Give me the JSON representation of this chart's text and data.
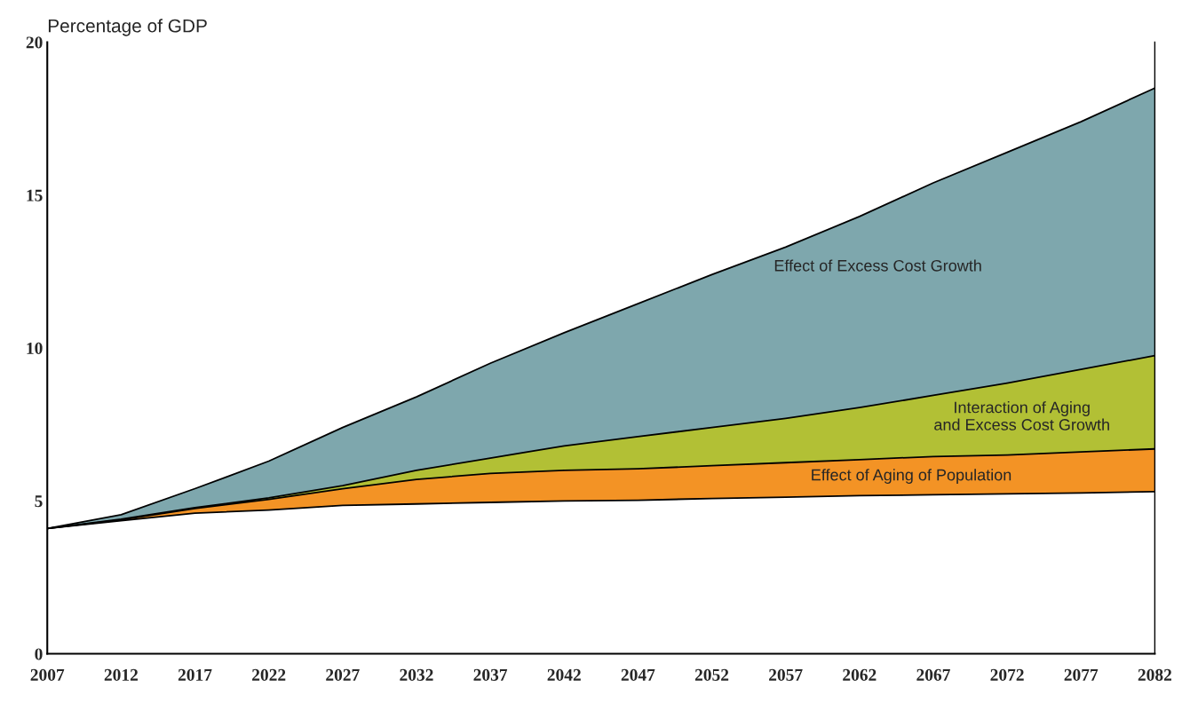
{
  "chart_data": {
    "type": "area",
    "stacked": true,
    "ylabel": "Percentage of GDP",
    "x": [
      2007,
      2012,
      2017,
      2022,
      2027,
      2032,
      2037,
      2042,
      2047,
      2052,
      2057,
      2062,
      2067,
      2072,
      2077,
      2082
    ],
    "series": [
      {
        "color": "#ffffff",
        "values": [
          4.1,
          4.35,
          4.6,
          4.7,
          4.85,
          4.9,
          4.95,
          5.0,
          5.02,
          5.08,
          5.12,
          5.17,
          5.2,
          5.23,
          5.26,
          5.3
        ]
      },
      {
        "name": "Effect of Aging of Population",
        "color": "#f39325",
        "values": [
          0,
          0.03,
          0.15,
          0.35,
          0.55,
          0.8,
          0.95,
          1.0,
          1.03,
          1.07,
          1.13,
          1.18,
          1.25,
          1.27,
          1.34,
          1.4
        ]
      },
      {
        "name": "Interaction of Aging\nand Excess Cost Growth",
        "color": "#b2c035",
        "values": [
          0,
          0.02,
          0.03,
          0.05,
          0.1,
          0.3,
          0.5,
          0.8,
          1.05,
          1.25,
          1.45,
          1.7,
          2.0,
          2.35,
          2.7,
          3.05
        ]
      },
      {
        "name": "Effect of Excess Cost Growth",
        "color": "#7ea7ad",
        "values": [
          0,
          0.15,
          0.62,
          1.2,
          1.9,
          2.4,
          3.1,
          3.7,
          4.35,
          5.0,
          5.6,
          6.25,
          6.95,
          7.55,
          8.1,
          8.75
        ]
      }
    ],
    "xlim": [
      2007,
      2082
    ],
    "xticks": [
      2007,
      2012,
      2017,
      2022,
      2027,
      2032,
      2037,
      2042,
      2047,
      2052,
      2057,
      2062,
      2067,
      2072,
      2077,
      2082
    ],
    "ylim": [
      0,
      20
    ],
    "yticks": [
      0,
      5,
      10,
      15,
      20
    ],
    "grid": false,
    "legend": false
  }
}
